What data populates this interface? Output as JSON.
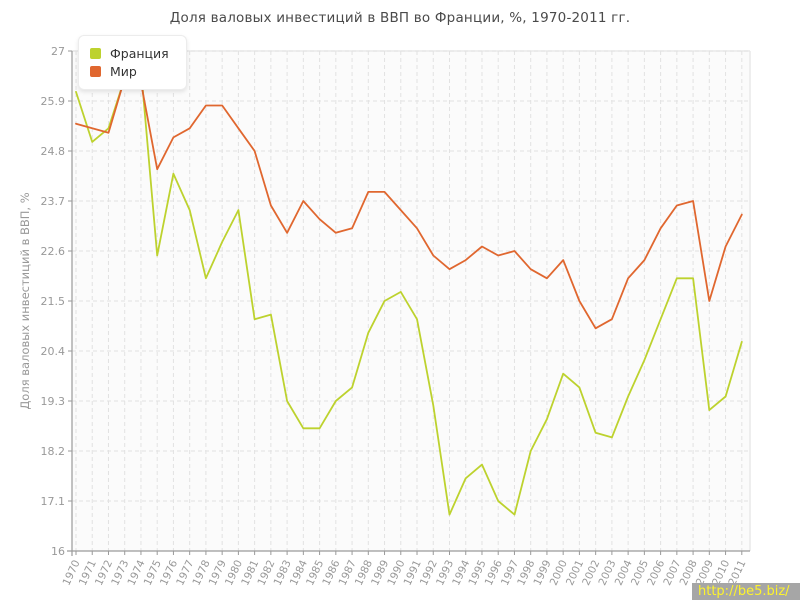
{
  "title": "Доля валовых инвестиций в ВВП во Франции, %, 1970-2011 гг.",
  "watermark": "http://be5.biz/",
  "y_axis": {
    "label": "Доля валовых инвестиций в ВВП, %"
  },
  "legend": {
    "items": [
      {
        "label": "Франция",
        "color": "#bdd22e"
      },
      {
        "label": "Мир",
        "color": "#e0672f"
      }
    ]
  },
  "chart_data": {
    "type": "line",
    "title": "Доля валовых инвестиций в ВВП во Франции, %, 1970-2011 гг.",
    "xlabel": "",
    "ylabel": "Доля валовых инвестиций в ВВП, %",
    "ylim": [
      16,
      27
    ],
    "yticks": [
      16,
      17.1,
      18.2,
      19.3,
      20.4,
      21.5,
      22.6,
      23.7,
      24.8,
      25.9,
      27
    ],
    "grid": true,
    "legend_position": "top-left",
    "x": [
      1970,
      1971,
      1972,
      1973,
      1974,
      1975,
      1976,
      1977,
      1978,
      1979,
      1980,
      1981,
      1982,
      1983,
      1984,
      1985,
      1986,
      1987,
      1988,
      1989,
      1990,
      1991,
      1992,
      1993,
      1994,
      1995,
      1996,
      1997,
      1998,
      1999,
      2000,
      2001,
      2002,
      2003,
      2004,
      2005,
      2006,
      2007,
      2008,
      2009,
      2010,
      2011
    ],
    "series": [
      {
        "name": "Франция",
        "color": "#bdd22e",
        "values": [
          26.1,
          25.0,
          25.3,
          26.4,
          26.6,
          22.5,
          24.3,
          23.5,
          22.0,
          22.8,
          23.5,
          21.1,
          21.2,
          19.3,
          18.7,
          18.7,
          19.3,
          19.6,
          20.8,
          21.5,
          21.7,
          21.1,
          19.2,
          16.8,
          17.6,
          17.9,
          17.1,
          16.8,
          18.2,
          18.9,
          19.9,
          19.6,
          18.6,
          18.5,
          19.4,
          20.2,
          21.1,
          22.0,
          22.0,
          19.1,
          19.4,
          20.6
        ]
      },
      {
        "name": "Мир",
        "color": "#e0672f",
        "values": [
          25.4,
          25.3,
          25.2,
          26.4,
          26.3,
          24.4,
          25.1,
          25.3,
          25.8,
          25.8,
          25.3,
          24.8,
          23.6,
          23.0,
          23.7,
          23.3,
          23.0,
          23.1,
          23.9,
          23.9,
          23.5,
          23.1,
          22.5,
          22.2,
          22.4,
          22.7,
          22.5,
          22.6,
          22.2,
          22.0,
          22.4,
          21.5,
          20.9,
          21.1,
          22.0,
          22.4,
          23.1,
          23.6,
          23.7,
          21.5,
          22.7,
          23.4
        ]
      }
    ]
  }
}
